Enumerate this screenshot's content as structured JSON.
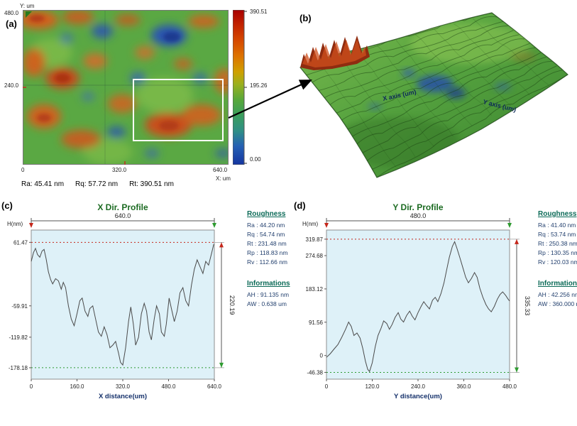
{
  "panel_a": {
    "label": "(a)",
    "y_axis_title": "Y: um",
    "y_ticks": [
      "480.0",
      "240.0"
    ],
    "x_ticks": [
      "0",
      "320.0",
      "640.0"
    ],
    "x_axis_title": "X: um",
    "colorbar": {
      "max": "390.51",
      "mid": "195.26",
      "min": "0.00"
    },
    "stats": [
      "Ra: 45.41 nm",
      "Rq: 57.72 nm",
      "Rt: 390.51 nm"
    ]
  },
  "panel_b": {
    "label": "(b)",
    "x_axis_label": "X axis (um)",
    "y_axis_label": "Y axis (um)"
  },
  "panel_c": {
    "label": "(c)",
    "roughness_title": "Roughness",
    "roughness_items": [
      "Ra : 44.20 nm",
      "Rq : 54.74 nm",
      "Rt : 231.48 nm",
      "Rp : 118.83 nm",
      "Rv : 112.66 nm"
    ],
    "info_title": "Informations",
    "info_items": [
      "AH : 91.135 nm",
      "AW : 0.638 um"
    ]
  },
  "panel_d": {
    "label": "(d)",
    "roughness_title": "Roughness",
    "roughness_items": [
      "Ra : 41.40 nm",
      "Rq : 53.74 nm",
      "Rt : 250.38 nm",
      "Rp : 130.35 nm",
      "Rv : 120.03 nm"
    ],
    "info_title": "Informations",
    "info_items": [
      "AH : 42.256 nm",
      "AW : 360.000 nm"
    ]
  },
  "colors": {
    "plot_bg": "#def1f8",
    "title_green": "#1c6b22",
    "max_red": "#c5271b",
    "min_green": "#2e9b30",
    "heading_teal": "#0b6a57",
    "info_blue": "#23406e",
    "colorbar_top": "#a80000",
    "colorbar_bottom": "#1535a0"
  },
  "chart_data": [
    {
      "type": "line",
      "title": "X Dir. Profile",
      "ylabel": "H(nm)",
      "xlabel": "X distance(um)",
      "xlim": [
        0,
        640
      ],
      "ylim": [
        -200,
        85
      ],
      "x_ticks": [
        {
          "v": 0,
          "label": "0"
        },
        {
          "v": 160,
          "label": "160.0"
        },
        {
          "v": 320,
          "label": "320.0"
        },
        {
          "v": 480,
          "label": "480.0"
        },
        {
          "v": 640,
          "label": "640.0"
        }
      ],
      "y_ticks": [
        {
          "v": 61.47,
          "label": "61.47"
        },
        {
          "v": -59.91,
          "label": "-59.91"
        },
        {
          "v": -119.82,
          "label": "-119.82"
        },
        {
          "v": -178.18,
          "label": "-178.18"
        }
      ],
      "max_marker": 61.47,
      "min_marker": -178.18,
      "span_label": "640.0",
      "range_label": "220.19",
      "line_color": "#4a4a4a",
      "x": [
        0,
        8,
        15,
        22,
        30,
        38,
        45,
        52,
        60,
        68,
        75,
        85,
        95,
        105,
        112,
        120,
        130,
        140,
        150,
        160,
        170,
        178,
        188,
        198,
        205,
        215,
        225,
        235,
        245,
        255,
        265,
        275,
        285,
        295,
        305,
        312,
        320,
        330,
        340,
        348,
        357,
        365,
        375,
        385,
        395,
        403,
        412,
        420,
        430,
        438,
        448,
        455,
        465,
        472,
        482,
        490,
        500,
        510,
        520,
        530,
        540,
        550,
        560,
        570,
        580,
        590,
        600,
        610,
        620,
        630,
        638
      ],
      "y": [
        25,
        42,
        50,
        38,
        33,
        45,
        48,
        30,
        5,
        -10,
        -18,
        -8,
        -12,
        -28,
        -15,
        -25,
        -60,
        -85,
        -98,
        -75,
        -50,
        -45,
        -70,
        -80,
        -65,
        -60,
        -85,
        -110,
        -118,
        -100,
        -115,
        -140,
        -135,
        -128,
        -150,
        -168,
        -173,
        -140,
        -90,
        -62,
        -95,
        -135,
        -120,
        -75,
        -55,
        -70,
        -110,
        -125,
        -85,
        -60,
        -75,
        -110,
        -118,
        -95,
        -45,
        -65,
        -90,
        -70,
        -35,
        -25,
        -50,
        -60,
        -20,
        10,
        28,
        15,
        2,
        25,
        18,
        40,
        58
      ]
    },
    {
      "type": "line",
      "title": "Y Dir. Profile",
      "ylabel": "H(nm)",
      "xlabel": "Y distance(um)",
      "xlim": [
        0,
        480
      ],
      "ylim": [
        -65,
        345
      ],
      "x_ticks": [
        {
          "v": 0,
          "label": "0"
        },
        {
          "v": 120,
          "label": "120.0"
        },
        {
          "v": 240,
          "label": "240.0"
        },
        {
          "v": 360,
          "label": "360.0"
        },
        {
          "v": 480,
          "label": "480.0"
        }
      ],
      "y_ticks": [
        {
          "v": 319.87,
          "label": "319.87"
        },
        {
          "v": 274.68,
          "label": "274.68"
        },
        {
          "v": 183.12,
          "label": "183.12"
        },
        {
          "v": 91.56,
          "label": "91.56"
        },
        {
          "v": 0,
          "label": "0"
        },
        {
          "v": -46.38,
          "label": "-46.38"
        }
      ],
      "max_marker": 319.87,
      "min_marker": -46.38,
      "span_label": "480.0",
      "range_label": "335.33",
      "line_color": "#4a4a4a",
      "x": [
        0,
        10,
        20,
        30,
        40,
        50,
        58,
        65,
        72,
        80,
        88,
        95,
        102,
        108,
        113,
        120,
        128,
        135,
        143,
        150,
        158,
        165,
        172,
        180,
        188,
        195,
        202,
        210,
        218,
        225,
        232,
        240,
        248,
        255,
        262,
        270,
        278,
        285,
        292,
        300,
        308,
        315,
        322,
        330,
        336,
        342,
        350,
        358,
        365,
        372,
        380,
        388,
        395,
        402,
        410,
        418,
        425,
        432,
        440,
        448,
        455,
        462,
        470,
        476,
        480
      ],
      "y": [
        -5,
        5,
        18,
        30,
        50,
        72,
        92,
        80,
        55,
        62,
        48,
        20,
        -15,
        -38,
        -44,
        -20,
        25,
        55,
        75,
        95,
        88,
        72,
        85,
        105,
        118,
        100,
        92,
        110,
        122,
        108,
        98,
        118,
        135,
        148,
        138,
        128,
        152,
        160,
        148,
        170,
        200,
        235,
        270,
        300,
        313,
        295,
        268,
        240,
        215,
        200,
        212,
        228,
        215,
        185,
        160,
        140,
        128,
        120,
        135,
        155,
        168,
        175,
        165,
        155,
        150
      ]
    }
  ]
}
